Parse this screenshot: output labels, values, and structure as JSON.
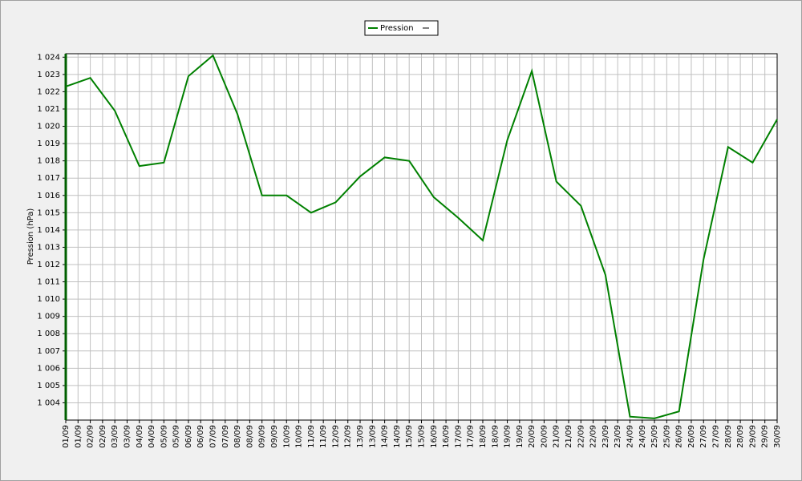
{
  "chart_data": {
    "type": "line",
    "y_label": "Pression (hPa)",
    "x": [
      1,
      2,
      3,
      4,
      5,
      6,
      7,
      8,
      9,
      10,
      11,
      12,
      13,
      14,
      15,
      16,
      17,
      18,
      19,
      20,
      21,
      22,
      23,
      24,
      25,
      26,
      27,
      28,
      29,
      30
    ],
    "xlim": [
      1,
      30
    ],
    "xticks": [
      {
        "value": 1,
        "label": "01/09"
      },
      {
        "value": 1.5,
        "label": "01/09"
      },
      {
        "value": 2,
        "label": "02/09"
      },
      {
        "value": 2.5,
        "label": "02/09"
      },
      {
        "value": 3,
        "label": "03/09"
      },
      {
        "value": 3.5,
        "label": "03/09"
      },
      {
        "value": 4,
        "label": "04/09"
      },
      {
        "value": 4.5,
        "label": "04/09"
      },
      {
        "value": 5,
        "label": "05/09"
      },
      {
        "value": 5.5,
        "label": "05/09"
      },
      {
        "value": 6,
        "label": "06/09"
      },
      {
        "value": 6.5,
        "label": "06/09"
      },
      {
        "value": 7,
        "label": "07/09"
      },
      {
        "value": 7.5,
        "label": "07/09"
      },
      {
        "value": 8,
        "label": "08/09"
      },
      {
        "value": 8.5,
        "label": "08/09"
      },
      {
        "value": 9,
        "label": "09/09"
      },
      {
        "value": 9.5,
        "label": "09/09"
      },
      {
        "value": 10,
        "label": "10/09"
      },
      {
        "value": 10.5,
        "label": "10/09"
      },
      {
        "value": 11,
        "label": "11/09"
      },
      {
        "value": 11.5,
        "label": "11/09"
      },
      {
        "value": 12,
        "label": "12/09"
      },
      {
        "value": 12.5,
        "label": "12/09"
      },
      {
        "value": 13,
        "label": "13/09"
      },
      {
        "value": 13.5,
        "label": "13/09"
      },
      {
        "value": 14,
        "label": "14/09"
      },
      {
        "value": 14.5,
        "label": "14/09"
      },
      {
        "value": 15,
        "label": "15/09"
      },
      {
        "value": 15.5,
        "label": "15/09"
      },
      {
        "value": 16,
        "label": "16/09"
      },
      {
        "value": 16.5,
        "label": "16/09"
      },
      {
        "value": 17,
        "label": "17/09"
      },
      {
        "value": 17.5,
        "label": "17/09"
      },
      {
        "value": 18,
        "label": "18/09"
      },
      {
        "value": 18.5,
        "label": "18/09"
      },
      {
        "value": 19,
        "label": "19/09"
      },
      {
        "value": 19.5,
        "label": "19/09"
      },
      {
        "value": 20,
        "label": "20/09"
      },
      {
        "value": 20.5,
        "label": "20/09"
      },
      {
        "value": 21,
        "label": "21/09"
      },
      {
        "value": 21.5,
        "label": "21/09"
      },
      {
        "value": 22,
        "label": "22/09"
      },
      {
        "value": 22.5,
        "label": "22/09"
      },
      {
        "value": 23,
        "label": "23/09"
      },
      {
        "value": 23.5,
        "label": "23/09"
      },
      {
        "value": 24,
        "label": "24/09"
      },
      {
        "value": 24.5,
        "label": "24/09"
      },
      {
        "value": 25,
        "label": "25/09"
      },
      {
        "value": 25.5,
        "label": "25/09"
      },
      {
        "value": 26,
        "label": "26/09"
      },
      {
        "value": 26.5,
        "label": "26/09"
      },
      {
        "value": 27,
        "label": "27/09"
      },
      {
        "value": 27.5,
        "label": "27/09"
      },
      {
        "value": 28,
        "label": "28/09"
      },
      {
        "value": 28.5,
        "label": "28/09"
      },
      {
        "value": 29,
        "label": "29/09"
      },
      {
        "value": 29.5,
        "label": "29/09"
      },
      {
        "value": 30,
        "label": "30/09"
      }
    ],
    "ylim": [
      1003,
      1024.2
    ],
    "yticks": [
      {
        "value": 1004,
        "label": "1 004"
      },
      {
        "value": 1005,
        "label": "1 005"
      },
      {
        "value": 1006,
        "label": "1 006"
      },
      {
        "value": 1007,
        "label": "1 007"
      },
      {
        "value": 1008,
        "label": "1 008"
      },
      {
        "value": 1009,
        "label": "1 009"
      },
      {
        "value": 1010,
        "label": "1 010"
      },
      {
        "value": 1011,
        "label": "1 011"
      },
      {
        "value": 1012,
        "label": "1 012"
      },
      {
        "value": 1013,
        "label": "1 013"
      },
      {
        "value": 1014,
        "label": "1 014"
      },
      {
        "value": 1015,
        "label": "1 015"
      },
      {
        "value": 1016,
        "label": "1 016"
      },
      {
        "value": 1017,
        "label": "1 017"
      },
      {
        "value": 1018,
        "label": "1 018"
      },
      {
        "value": 1019,
        "label": "1 019"
      },
      {
        "value": 1020,
        "label": "1 020"
      },
      {
        "value": 1021,
        "label": "1 021"
      },
      {
        "value": 1022,
        "label": "1 022"
      },
      {
        "value": 1023,
        "label": "1 023"
      },
      {
        "value": 1024,
        "label": "1 024"
      }
    ],
    "grid": true,
    "legend": "top",
    "series": [
      {
        "name": "Pression",
        "color": "#008000",
        "values": [
          1022.3,
          1022.8,
          1020.9,
          1017.7,
          1017.9,
          1022.9,
          1024.1,
          1020.7,
          1016.0,
          1016.0,
          1015.0,
          1015.6,
          1017.1,
          1018.2,
          1018.0,
          1015.9,
          1014.7,
          1013.4,
          1019.2,
          1023.2,
          1016.8,
          1015.4,
          1011.4,
          1003.2,
          1003.1,
          1003.5,
          1012.3,
          1018.8,
          1017.9,
          1020.4
        ]
      }
    ]
  }
}
